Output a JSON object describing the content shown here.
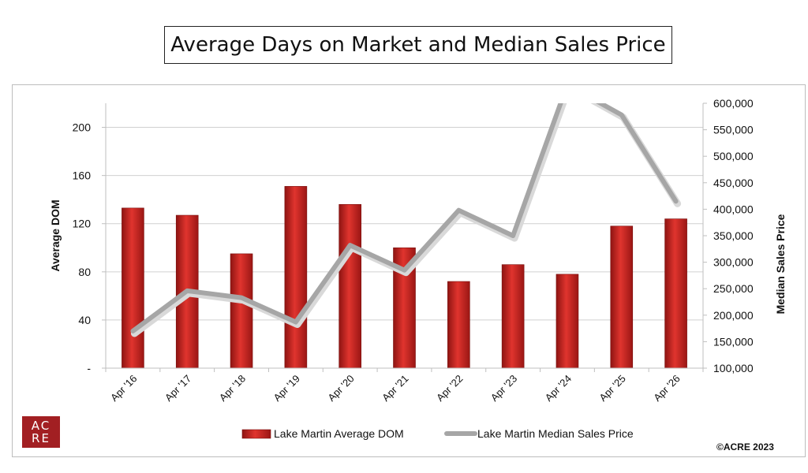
{
  "title": "Average Days on Market and Median Sales Price",
  "logo": {
    "line1": "AC",
    "line2": "RE"
  },
  "copyright": "©ACRE 2023",
  "colors": {
    "bar": "#c0201f",
    "line": "#a6a6a6",
    "grid": "#d0d0d0"
  },
  "chart_data": {
    "type": "bar",
    "categories": [
      "Apr '16",
      "Apr '17",
      "Apr '18",
      "Apr '19",
      "Apr '20",
      "Apr '21",
      "Apr '22",
      "Apr '23",
      "Apr '24",
      "Apr '25",
      "Apr '26"
    ],
    "series": [
      {
        "name": "Lake Martin Average DOM",
        "type": "bar",
        "axis": "left",
        "values": [
          133,
          127,
          95,
          151,
          136,
          100,
          72,
          86,
          78,
          118,
          124
        ]
      },
      {
        "name": "Lake Martin Median Sales Price",
        "type": "line",
        "axis": "right",
        "values": [
          170000,
          246000,
          233000,
          187000,
          332000,
          285000,
          398000,
          350000,
          635000,
          578000,
          415000
        ]
      }
    ],
    "ylabel": "Average DOM",
    "y2label": "Median Sales Price",
    "ylim": [
      0,
      220
    ],
    "yticks": [
      {
        "value": 0,
        "label": "-"
      },
      {
        "value": 40,
        "label": "40"
      },
      {
        "value": 80,
        "label": "80"
      },
      {
        "value": 120,
        "label": "120"
      },
      {
        "value": 160,
        "label": "160"
      },
      {
        "value": 200,
        "label": "200"
      }
    ],
    "y2lim": [
      100000,
      600000
    ],
    "y2ticks": [
      {
        "value": 100000,
        "label": "100,000"
      },
      {
        "value": 150000,
        "label": "150,000"
      },
      {
        "value": 200000,
        "label": "200,000"
      },
      {
        "value": 250000,
        "label": "250,000"
      },
      {
        "value": 300000,
        "label": "300,000"
      },
      {
        "value": 350000,
        "label": "350,000"
      },
      {
        "value": 400000,
        "label": "400,000"
      },
      {
        "value": 450000,
        "label": "450,000"
      },
      {
        "value": 500000,
        "label": "500,000"
      },
      {
        "value": 550000,
        "label": "550,000"
      },
      {
        "value": 600000,
        "label": "600,000"
      }
    ],
    "grid": true,
    "legend": "bottom"
  }
}
